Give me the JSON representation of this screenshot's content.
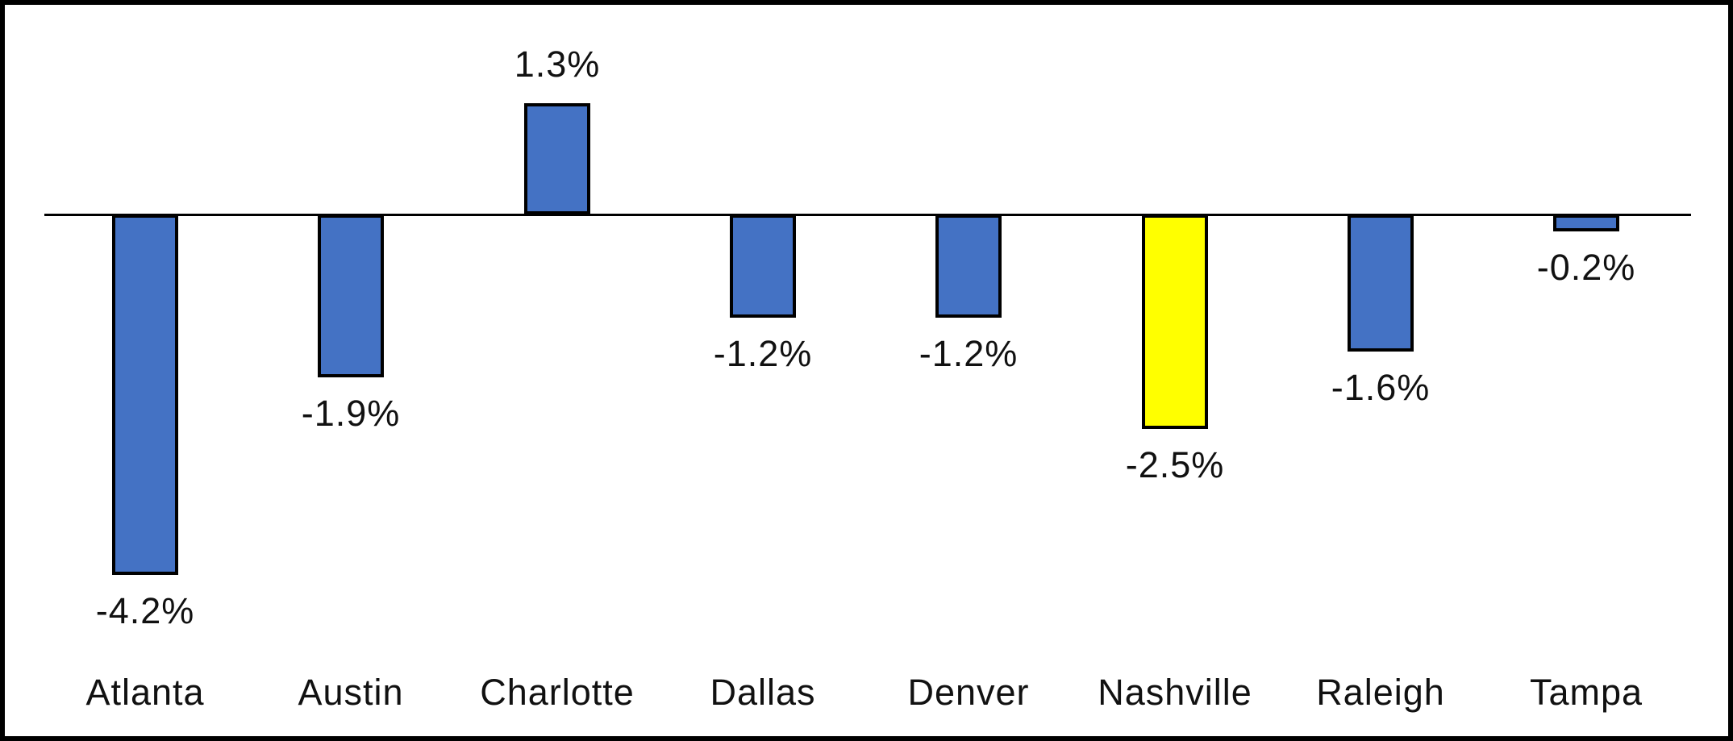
{
  "chart_data": {
    "type": "bar",
    "categories": [
      "Atlanta",
      "Austin",
      "Charlotte",
      "Dallas",
      "Denver",
      "Nashville",
      "Raleigh",
      "Tampa"
    ],
    "values": [
      -4.2,
      -1.9,
      1.3,
      -1.2,
      -1.2,
      -2.5,
      -1.6,
      -0.2
    ],
    "data_labels": [
      "-4.2%",
      "-1.9%",
      "1.3%",
      "-1.2%",
      "-1.2%",
      "-2.5%",
      "-1.6%",
      "-0.2%"
    ],
    "title": "",
    "xlabel": "",
    "ylabel": "",
    "ylim": [
      -5,
      1.5
    ],
    "grid": false,
    "legend": false,
    "colors": {
      "bar_default": "#4472C4",
      "bar_highlight": "#FFFF00",
      "bar_outline": "#000000",
      "axis_line": "#000000",
      "frame_border": "#000000",
      "label_text": "#111111",
      "background": "#FFFFFF"
    },
    "highlight_index": 5,
    "highlighted_category": "Nashville"
  }
}
